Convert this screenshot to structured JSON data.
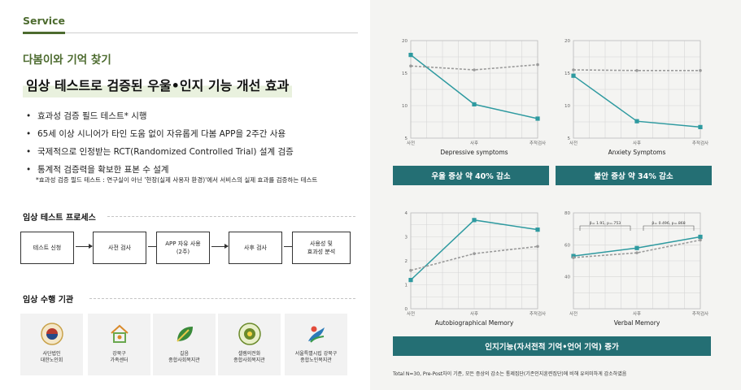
{
  "left": {
    "section_label": "Service",
    "product_name": "다봄이와 기억 찾기",
    "headline": "임상 테스트로 검증된 우울•인지 기능 개선 효과",
    "bullets": [
      "효과성 검증 필드 테스트* 시행",
      "65세 이상 시니어가 타인 도움 없이 자유롭게 다봄 APP을 2주간 사용",
      "국제적으로 인정받는 RCT(Randomized Controlled Trial) 설계 검증",
      "통계적 검증력을 확보한 표본 수 설계"
    ],
    "footnote": "*효과성 검증 필드 테스트 : 연구실이 아닌 '현장(실제 사용자 환경)'에서 서비스의 실제 효과를 검증하는 테스트",
    "process_title": "임상 테스트 프로세스",
    "process_steps": [
      "테스트 신청",
      "사전 검사",
      "APP 자유 사용\n(2주)",
      "사후 검사",
      "사용성 및\n효과성 분석"
    ],
    "institutions_title": "임상 수행 기관",
    "institutions": [
      {
        "name": "사단법인\n대한노인회",
        "icon": "association-seal-icon",
        "color": "#b53a2f"
      },
      {
        "name": "강북구\n가족센터",
        "icon": "family-center-icon",
        "color": "#d98a2b"
      },
      {
        "name": "길음\n종합사회복지관",
        "icon": "leaf-icon",
        "color": "#3a8a3a"
      },
      {
        "name": "셀렘의전화\n종합사회복지관",
        "icon": "welfare-seal-icon",
        "color": "#6a8a2a"
      },
      {
        "name": "서울특별시립 강북구\n종합노인복지관",
        "icon": "city-icon",
        "color": "#2b7ab8"
      }
    ]
  },
  "right": {
    "band_depression": "우울 증상 약 40% 감소",
    "band_anxiety": "불안 증상 약 34% 감소",
    "band_cognition": "인지기능(자서전적 기억•언어 기억) 증가",
    "bottom_note": "Total N=30, Pre-Post차이 기준, 모든 증상의 감소는 통제집단(기존인지훈련집단)에 비해 유의미하게 감소하였음",
    "colors": {
      "treatment": "#2e9aa0",
      "control": "#9a9a9a",
      "band": "#246f74"
    }
  },
  "chart_data": [
    {
      "type": "line",
      "title": "Depressive symptoms",
      "categories": [
        "사전",
        "사후",
        "추적검사"
      ],
      "ylim": [
        5,
        20
      ],
      "yticks": [
        "5",
        "10",
        "15",
        "20"
      ],
      "series": [
        {
          "name": "",
          "style": "solid",
          "values": [
            17.8,
            10.2,
            8.0
          ]
        },
        {
          "name": "",
          "style": "dashed",
          "values": [
            16.1,
            15.5,
            16.3
          ]
        }
      ],
      "annotations": []
    },
    {
      "type": "line",
      "title": "Anxiety Symptoms",
      "categories": [
        "사전",
        "사후",
        "추적검사"
      ],
      "ylim": [
        5,
        20
      ],
      "yticks": [
        "5",
        "10",
        "15",
        "20"
      ],
      "series": [
        {
          "name": "",
          "style": "solid",
          "values": [
            14.6,
            7.6,
            6.7
          ]
        },
        {
          "name": "",
          "style": "dashed",
          "values": [
            15.5,
            15.4,
            15.4
          ]
        }
      ],
      "annotations": []
    },
    {
      "type": "line",
      "title": "Autobiographical Memory",
      "categories": [
        "사전",
        "사후",
        "추적검사"
      ],
      "ylim": [
        0,
        4
      ],
      "yticks": [
        "0",
        "1",
        "2",
        "3",
        "4"
      ],
      "series": [
        {
          "name": "",
          "style": "solid",
          "values": [
            1.2,
            3.7,
            3.3
          ]
        },
        {
          "name": "",
          "style": "dashed",
          "values": [
            1.6,
            2.3,
            2.6
          ]
        }
      ],
      "annotations": []
    },
    {
      "type": "line",
      "title": "Verbal Memory",
      "categories": [
        "사전",
        "사후",
        "추적검사"
      ],
      "ylim": [
        20,
        80
      ],
      "yticks": [
        "40",
        "60",
        "80"
      ],
      "series": [
        {
          "name": "",
          "style": "solid",
          "values": [
            53,
            58,
            65
          ]
        },
        {
          "name": "",
          "style": "dashed",
          "values": [
            52,
            55,
            63
          ]
        }
      ],
      "annotations": [
        "β= 1.91, p=.753",
        "β= 0.496, p=.868"
      ]
    }
  ]
}
